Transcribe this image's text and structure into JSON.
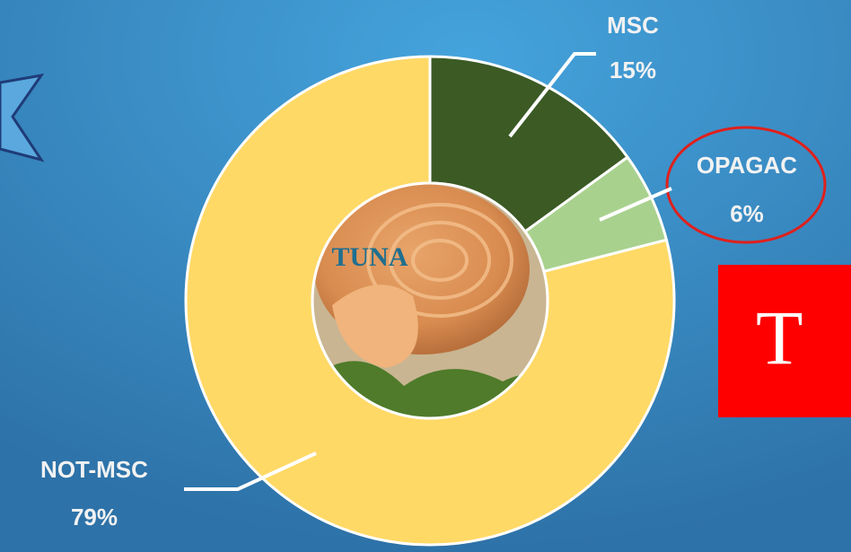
{
  "chart_data": {
    "type": "donut",
    "categories": [
      "MSC",
      "OPAGAC",
      "NOT-MSC"
    ],
    "values": [
      15,
      6,
      79
    ],
    "value_labels": [
      "15%",
      "6%",
      "79%"
    ],
    "colors": [
      "#3b5a24",
      "#a9d18e",
      "#ffd966"
    ],
    "center_label": "TUNA",
    "highlighted": "OPAGAC",
    "banner_text": "T"
  }
}
